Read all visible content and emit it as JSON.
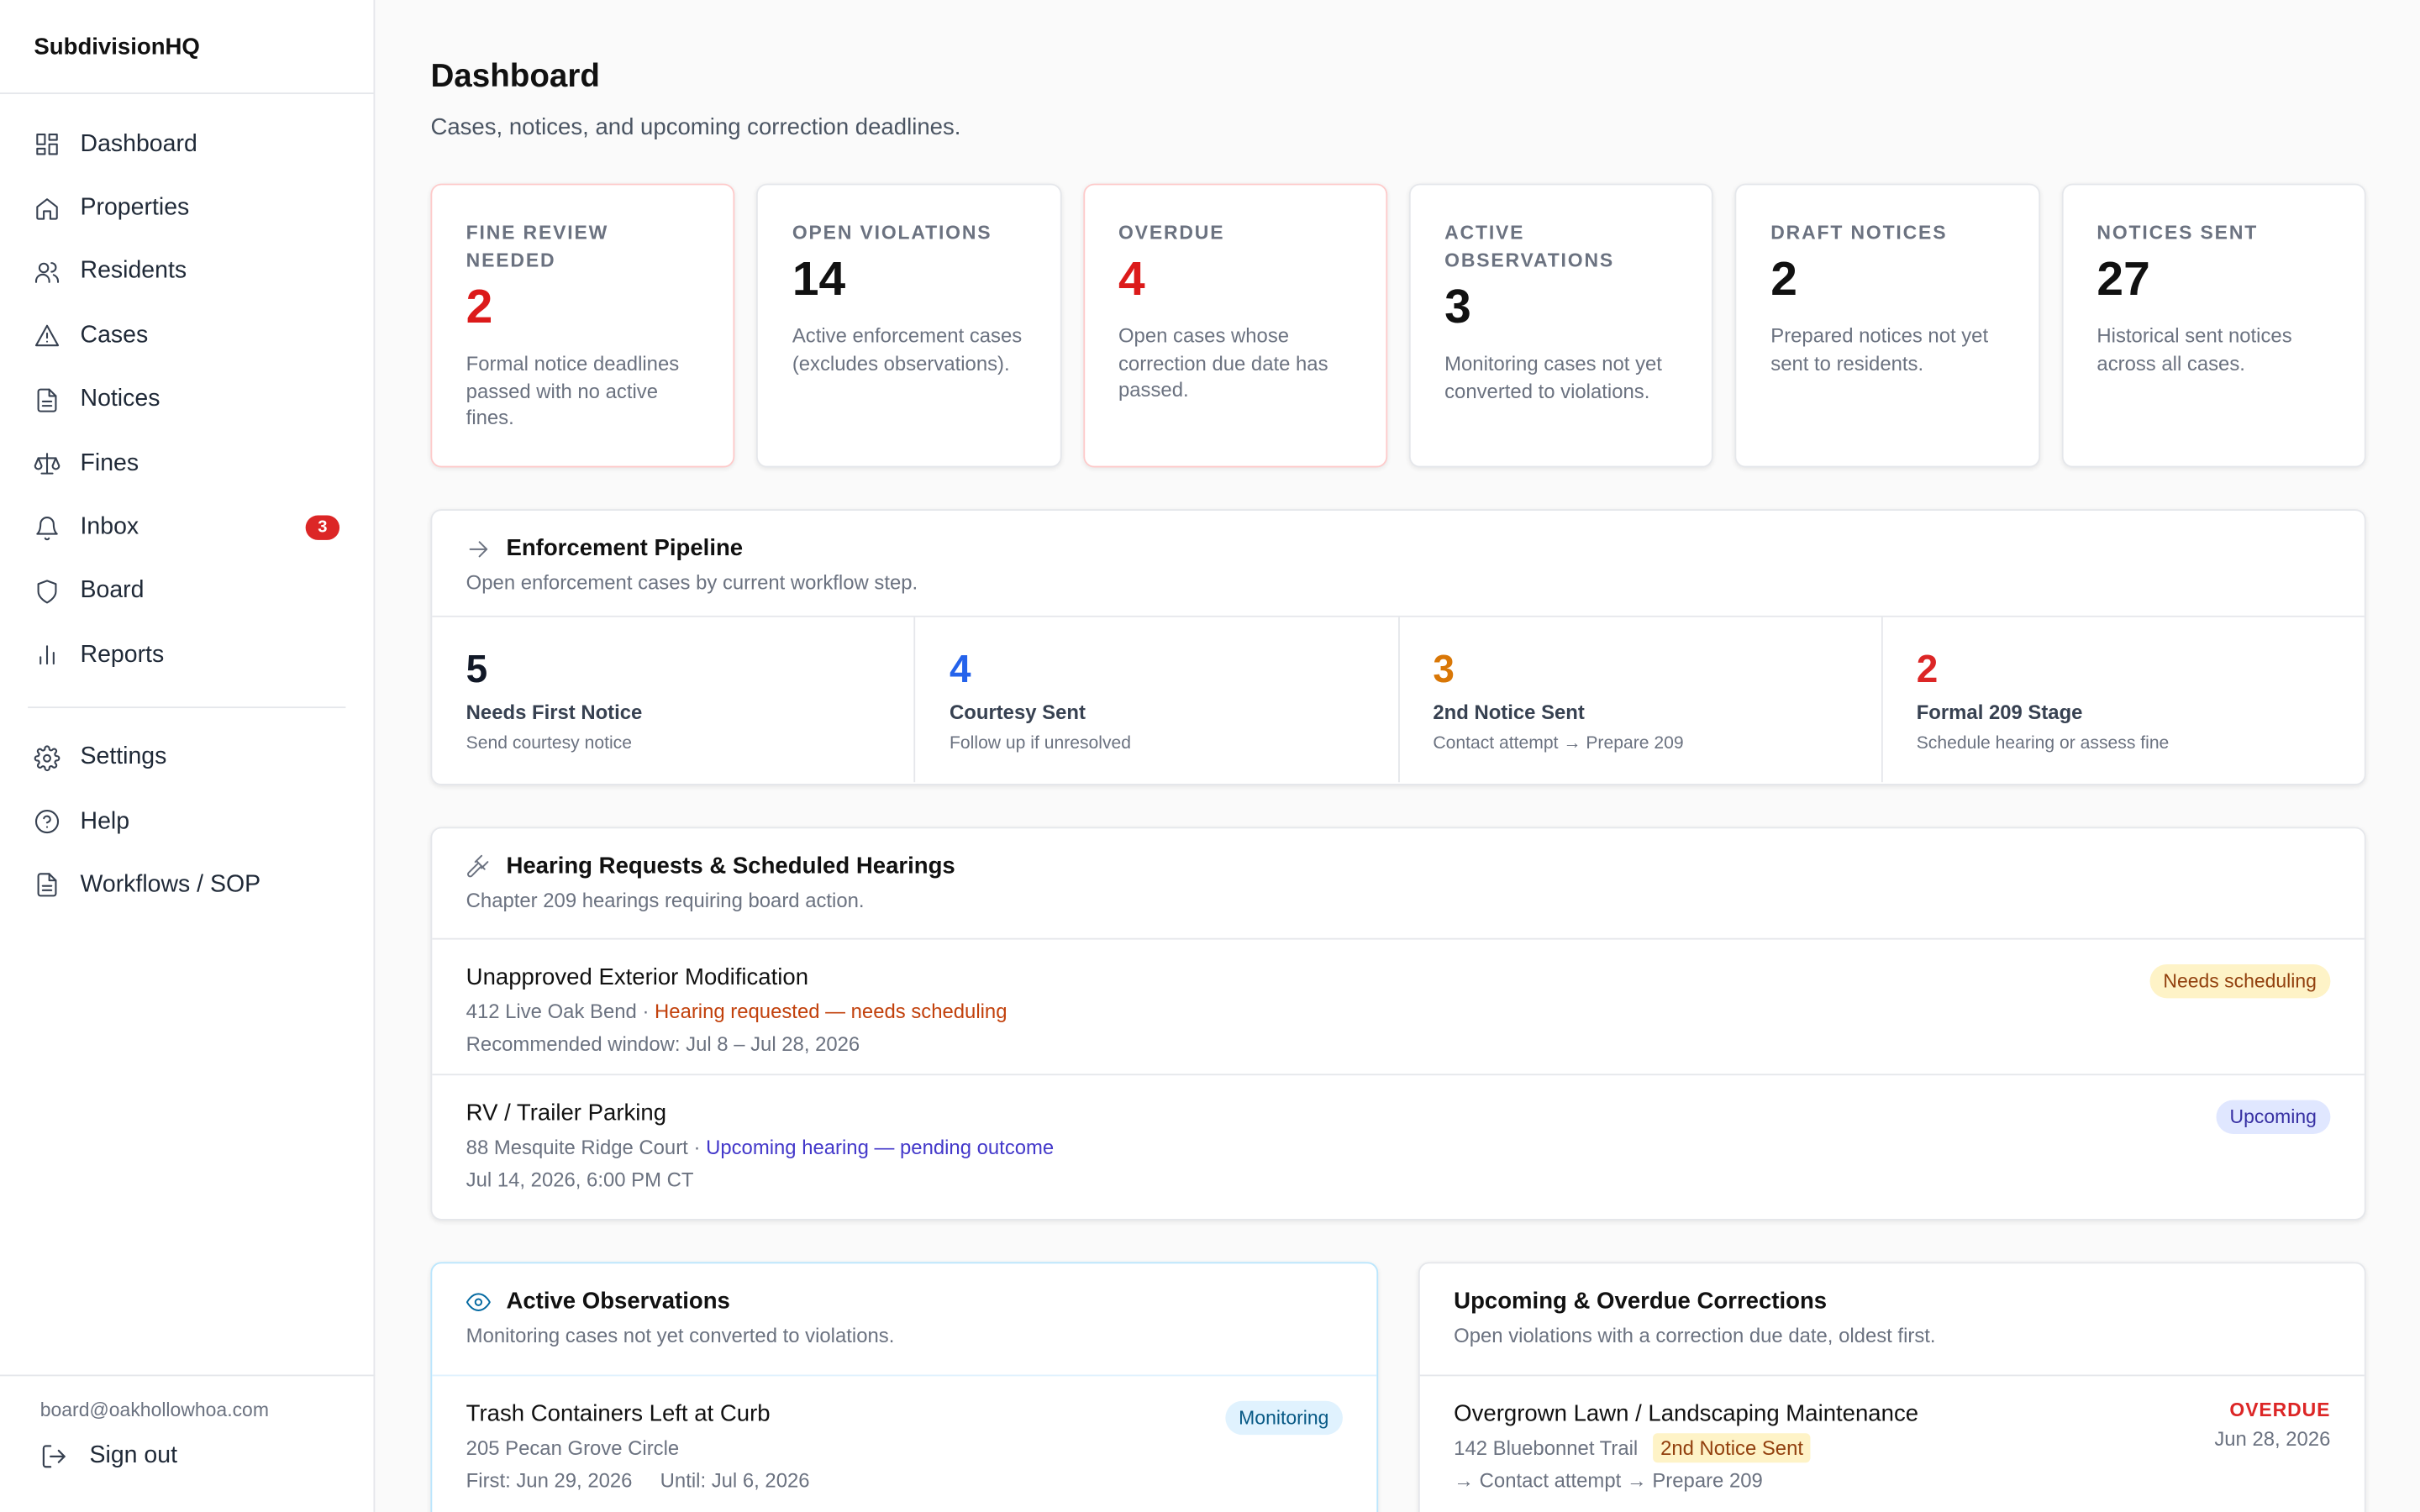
{
  "brand": "SubdivisionHQ",
  "nav": [
    {
      "label": "Dashboard",
      "icon": "grid-icon"
    },
    {
      "label": "Properties",
      "icon": "home-icon"
    },
    {
      "label": "Residents",
      "icon": "users-icon"
    },
    {
      "label": "Cases",
      "icon": "warning-icon"
    },
    {
      "label": "Notices",
      "icon": "file-icon"
    },
    {
      "label": "Fines",
      "icon": "scale-icon"
    },
    {
      "label": "Inbox",
      "icon": "bell-icon",
      "badge": "3"
    },
    {
      "label": "Board",
      "icon": "shield-icon"
    },
    {
      "label": "Reports",
      "icon": "bar-chart-icon"
    }
  ],
  "nav_secondary": [
    {
      "label": "Settings",
      "icon": "gear-icon"
    },
    {
      "label": "Help",
      "icon": "help-icon"
    },
    {
      "label": "Workflows / SOP",
      "icon": "file-icon"
    }
  ],
  "footer": {
    "email": "board@oakhollowhoa.com",
    "signout": "Sign out"
  },
  "page": {
    "title": "Dashboard",
    "subtitle": "Cases, notices, and upcoming correction deadlines."
  },
  "stats": [
    {
      "label": "Fine Review Needed",
      "value": "2",
      "desc": "Formal notice deadlines passed with no active fines.",
      "alert": true
    },
    {
      "label": "Open Violations",
      "value": "14",
      "desc": "Active enforcement cases (excludes observations).",
      "alert": false
    },
    {
      "label": "Overdue",
      "value": "4",
      "desc": "Open cases whose correction due date has passed.",
      "alert": true
    },
    {
      "label": "Active Observations",
      "value": "3",
      "desc": "Monitoring cases not yet converted to violations.",
      "alert": false
    },
    {
      "label": "Draft Notices",
      "value": "2",
      "desc": "Prepared notices not yet sent to residents.",
      "alert": false
    },
    {
      "label": "Notices Sent",
      "value": "27",
      "desc": "Historical sent notices across all cases.",
      "alert": false
    }
  ],
  "pipeline": {
    "title": "Enforcement Pipeline",
    "subtitle": "Open enforcement cases by current workflow step.",
    "steps": [
      {
        "count": "5",
        "name": "Needs First Notice",
        "desc": "Send courtesy notice",
        "color": "#111827"
      },
      {
        "count": "4",
        "name": "Courtesy Sent",
        "desc": "Follow up if unresolved",
        "color": "#2563eb"
      },
      {
        "count": "3",
        "name": "2nd Notice Sent",
        "desc": "Contact attempt → Prepare 209",
        "color": "#d97706"
      },
      {
        "count": "2",
        "name": "Formal 209 Stage",
        "desc": "Schedule hearing or assess fine",
        "color": "#dc2626"
      }
    ]
  },
  "hearings": {
    "title": "Hearing Requests & Scheduled Hearings",
    "subtitle": "Chapter 209 hearings requiring board action.",
    "items": [
      {
        "title": "Unapproved Exterior Modification",
        "address": "412 Live Oak Bend",
        "status": "Hearing requested — needs scheduling",
        "detail": "Recommended window: Jul 8 – Jul 28, 2026",
        "badge": "Needs scheduling"
      },
      {
        "title": "RV / Trailer Parking",
        "address": "88 Mesquite Ridge Court",
        "status": "Upcoming hearing — pending outcome",
        "detail": "Jul 14, 2026, 6:00 PM CT",
        "badge": "Upcoming"
      }
    ]
  },
  "observations": {
    "title": "Active Observations",
    "subtitle": "Monitoring cases not yet converted to violations.",
    "items": [
      {
        "title": "Trash Containers Left at Curb",
        "address": "205 Pecan Grove Circle",
        "first": "First: Jun 29, 2026",
        "until": "Until: Jul 6, 2026",
        "badge": "Monitoring"
      }
    ]
  },
  "corrections": {
    "title": "Upcoming & Overdue Corrections",
    "subtitle": "Open violations with a correction due date, oldest first.",
    "items": [
      {
        "title": "Overgrown Lawn / Landscaping Maintenance",
        "address": "142 Bluebonnet Trail",
        "stage": "2nd Notice Sent",
        "next": "→ Contact attempt → Prepare 209",
        "status": "OVERDUE",
        "date": "Jun 28, 2026"
      }
    ]
  }
}
